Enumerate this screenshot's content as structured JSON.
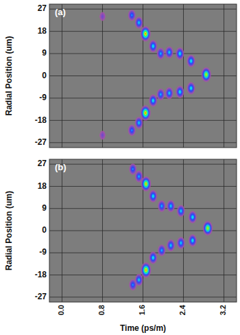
{
  "chart_data": [
    {
      "type": "scatter",
      "title": "(a)",
      "y_label": "Radial Position (um)",
      "x": [
        0.8,
        0.8,
        1.38,
        1.52,
        1.65,
        1.8,
        1.95,
        2.12,
        2.33,
        2.55,
        1.38,
        1.52,
        1.65,
        1.8,
        1.95,
        2.12,
        2.33,
        2.55,
        2.85
      ],
      "values": [
        24,
        -24,
        24.5,
        21.5,
        17,
        12,
        9,
        9.5,
        9,
        6,
        -22,
        -19,
        -15,
        -10,
        -7.5,
        -7,
        -6.5,
        -5,
        0.5
      ],
      "intensity": [
        0.15,
        0.15,
        0.45,
        0.55,
        1.0,
        0.6,
        0.5,
        0.55,
        0.6,
        0.6,
        0.45,
        0.55,
        1.0,
        0.6,
        0.5,
        0.55,
        0.6,
        0.6,
        0.9
      ],
      "intensity_range": [
        0,
        1
      ],
      "xlim": [
        -0.25,
        3.45
      ],
      "xticks": [
        {
          "value": 0,
          "label": "0.0"
        },
        {
          "value": 0.8,
          "label": "0.8"
        },
        {
          "value": 1.6,
          "label": "1.6"
        },
        {
          "value": 2.4,
          "label": "2.4"
        },
        {
          "value": 3.2,
          "label": "3.2"
        }
      ],
      "ylim": [
        -29,
        29
      ],
      "yticks": [
        27,
        18,
        9,
        0,
        -9,
        -18,
        -27
      ],
      "grid": true,
      "tick_labels": "y"
    },
    {
      "type": "scatter",
      "title": "(b)",
      "y_label": "Radial Position (um)",
      "x_label": "Time (ps/m)",
      "x": [
        1.4,
        1.52,
        1.66,
        1.8,
        1.97,
        2.15,
        2.35,
        2.58,
        1.4,
        1.52,
        1.66,
        1.8,
        1.97,
        2.15,
        2.35,
        2.58,
        2.88
      ],
      "values": [
        25,
        22,
        19,
        14,
        10,
        10,
        8,
        5.5,
        -22,
        -20,
        -16,
        -11,
        -8,
        -6,
        -5,
        -4,
        1
      ],
      "intensity": [
        0.45,
        0.5,
        0.95,
        0.6,
        0.5,
        0.55,
        0.55,
        0.6,
        0.45,
        0.55,
        1.0,
        0.6,
        0.5,
        0.55,
        0.55,
        0.6,
        0.9
      ],
      "intensity_range": [
        0,
        1
      ],
      "xlim": [
        -0.25,
        3.45
      ],
      "xticks": [
        {
          "value": 0,
          "label": "0.0"
        },
        {
          "value": 0.8,
          "label": "0.8"
        },
        {
          "value": 1.6,
          "label": "1.6"
        },
        {
          "value": 2.4,
          "label": "2.4"
        },
        {
          "value": 3.2,
          "label": "3.2"
        }
      ],
      "ylim": [
        -29,
        29
      ],
      "yticks": [
        27,
        18,
        9,
        0,
        -9,
        -18,
        -27
      ],
      "grid": true
    }
  ]
}
